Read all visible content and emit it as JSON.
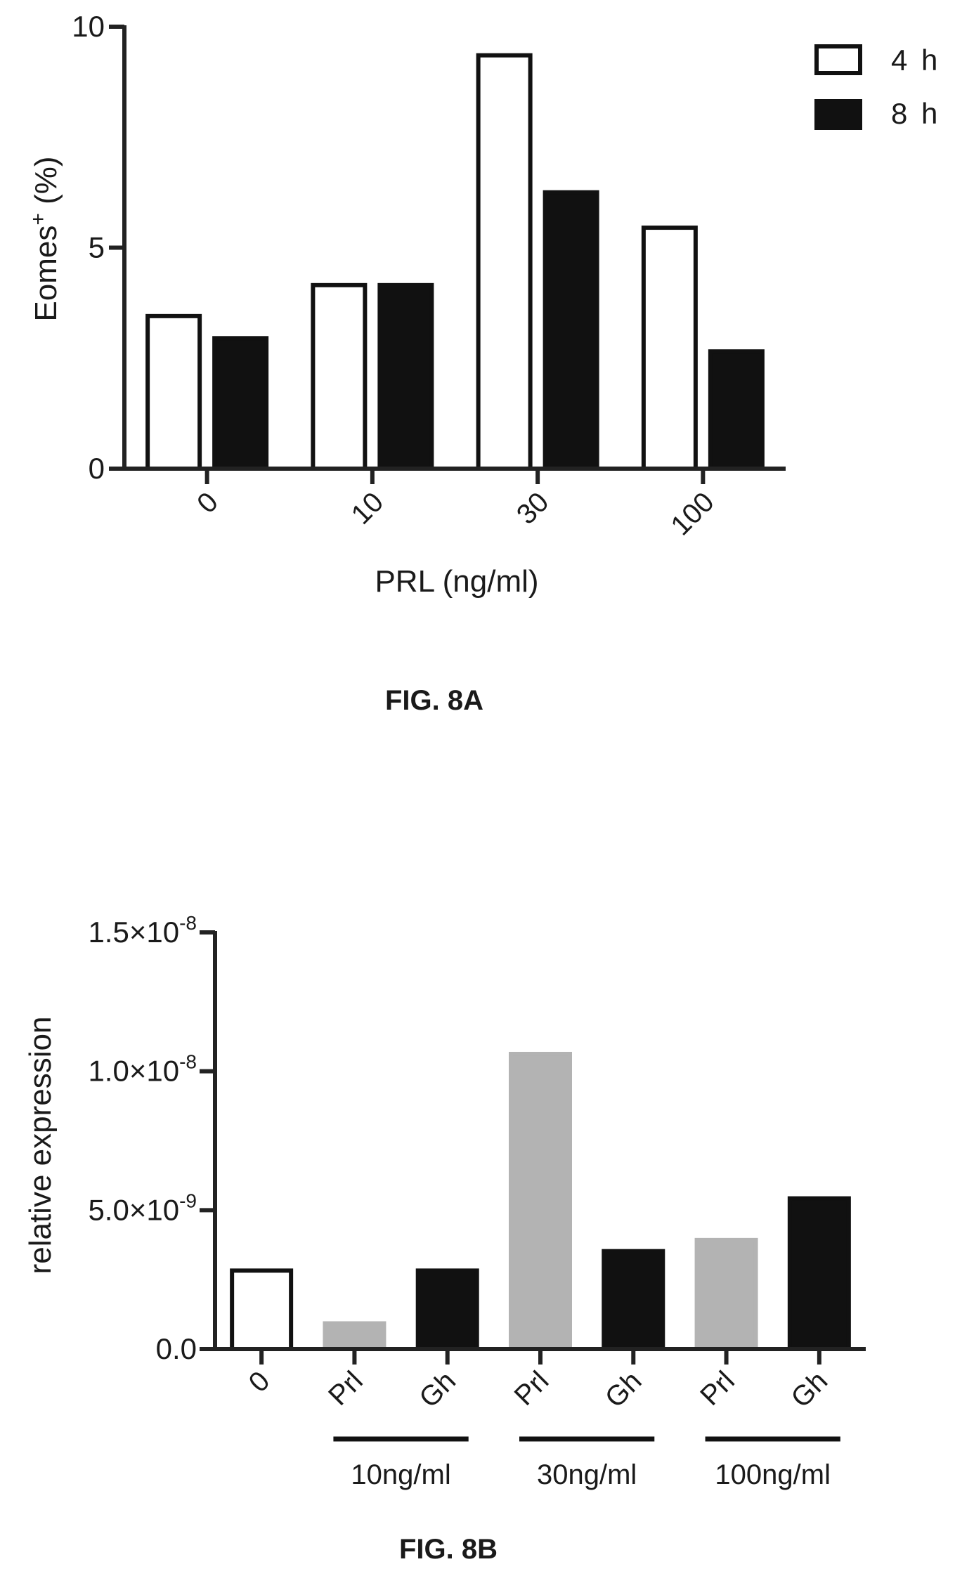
{
  "figure_a": {
    "caption": "FIG. 8A"
  },
  "figure_b": {
    "caption": "FIG. 8B"
  },
  "chart_data": [
    {
      "type": "bar",
      "categories": [
        "0",
        "10",
        "30",
        "100"
      ],
      "series": [
        {
          "name": "4 h",
          "color": "#ffffff",
          "values": [
            3.5,
            4.2,
            9.4,
            5.5
          ]
        },
        {
          "name": "8 h",
          "color": "#111111",
          "values": [
            3.0,
            4.2,
            6.3,
            2.7
          ]
        }
      ],
      "ylabel_main": "Eomes",
      "ylabel_sup": "+",
      "ylabel_rest": " (%)",
      "xlabel": "PRL (ng/ml)",
      "ylim": [
        0,
        10
      ],
      "yticks": [
        {
          "value": 0,
          "label": "0"
        },
        {
          "value": 5,
          "label": "5"
        },
        {
          "value": 10,
          "label": "10"
        }
      ],
      "legend": "top-right",
      "grid": false
    },
    {
      "type": "bar",
      "categories": [
        "0",
        "Prl",
        "Gh",
        "Prl",
        "Gh",
        "Prl",
        "Gh"
      ],
      "values": [
        2.9e-09,
        1e-09,
        2.9e-09,
        1.07e-08,
        3.6e-09,
        4e-09,
        5.5e-09
      ],
      "bar_colors": [
        "#ffffff",
        "#b3b3b3",
        "#111111",
        "#b3b3b3",
        "#111111",
        "#b3b3b3",
        "#111111"
      ],
      "groups": [
        {
          "label": "10ng/ml",
          "from": 1,
          "to": 2
        },
        {
          "label": "30ng/ml",
          "from": 3,
          "to": 4
        },
        {
          "label": "100ng/ml",
          "from": 5,
          "to": 6
        }
      ],
      "ylabel": "relative expression",
      "ylim": [
        0,
        1.5e-08
      ],
      "yticks": [
        {
          "value": 0,
          "mant": "0.0",
          "exp": ""
        },
        {
          "value": 5e-09,
          "mant": "5.0×10",
          "exp": "-9"
        },
        {
          "value": 1e-08,
          "mant": "1.0×10",
          "exp": "-8"
        },
        {
          "value": 1.5e-08,
          "mant": "1.5×10",
          "exp": "-8"
        }
      ],
      "grid": false
    }
  ]
}
